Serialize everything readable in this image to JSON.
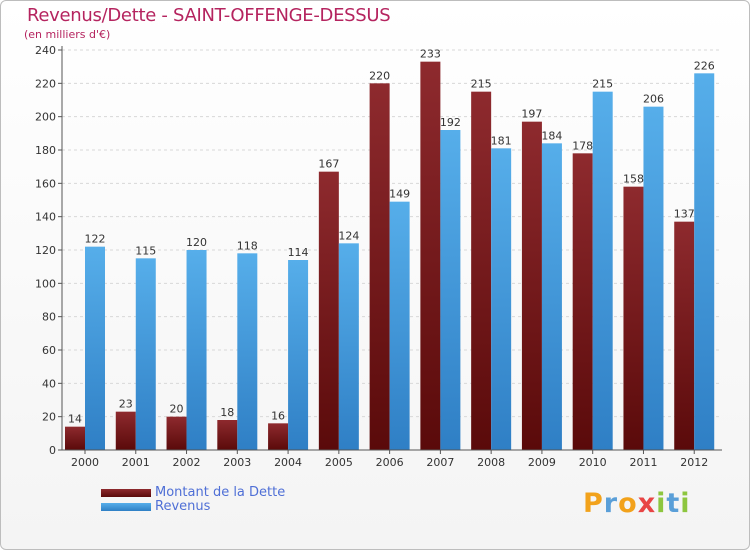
{
  "title": "Revenus/Dette - SAINT-OFFENGE-DESSUS",
  "subtitle": "(en milliers d'€)",
  "brand": {
    "letters": [
      "P",
      "r",
      "o",
      "x",
      "i",
      "t",
      "i"
    ],
    "colors": [
      "#f2a21b",
      "#5a9fd8",
      "#f2a21b",
      "#e84545",
      "#8dc63f",
      "#5a9fd8",
      "#8dc63f"
    ]
  },
  "chart_data": {
    "type": "bar",
    "categories": [
      "2000",
      "2001",
      "2002",
      "2003",
      "2004",
      "2005",
      "2006",
      "2007",
      "2008",
      "2009",
      "2010",
      "2011",
      "2012"
    ],
    "series": [
      {
        "name": "Montant de la Dette",
        "values": [
          14,
          23,
          20,
          18,
          16,
          167,
          220,
          233,
          215,
          197,
          178,
          158,
          137
        ],
        "color": "#7a1a1a"
      },
      {
        "name": "Revenus",
        "values": [
          122,
          115,
          120,
          118,
          114,
          124,
          149,
          192,
          181,
          184,
          215,
          206,
          226
        ],
        "color": "#3a8fd8"
      }
    ],
    "ylim": [
      0,
      240
    ],
    "yticks": [
      0,
      20,
      40,
      60,
      80,
      100,
      120,
      140,
      160,
      180,
      200,
      220,
      240
    ],
    "grid": true,
    "legend": "bottom-left"
  }
}
